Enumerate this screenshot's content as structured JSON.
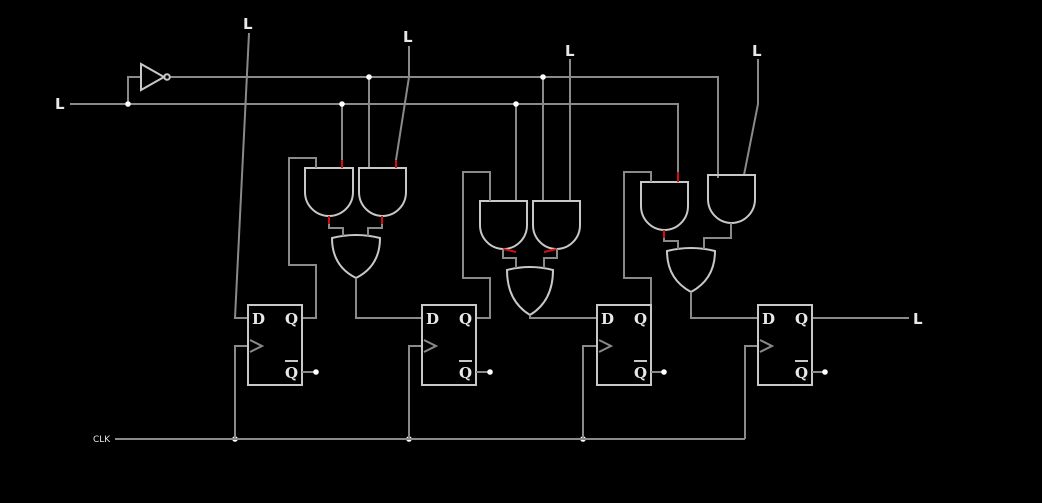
{
  "labels": {
    "shift_input": "L",
    "control_input": "L",
    "data_in_0": "L",
    "data_in_1": "L",
    "data_in_2": "L",
    "data_in_3": "L",
    "output": "L",
    "clock": "CLK"
  },
  "flipflop": {
    "d": "D",
    "q": "Q",
    "qbar": "Q"
  },
  "colors": {
    "background": "#000000",
    "wire": "#8a8a8a",
    "gate": "#c8c8c8",
    "active_low": "#d01010"
  }
}
